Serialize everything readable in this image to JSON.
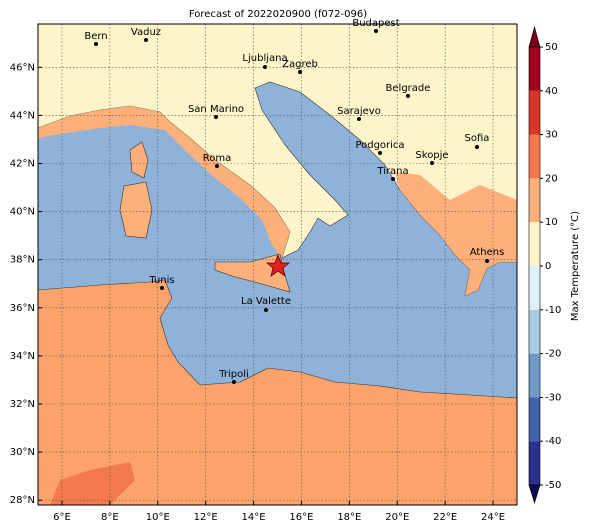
{
  "map": {
    "title": "Forecast of 2022020900 (f072-096)",
    "xlim": [
      5,
      25
    ],
    "ylim": [
      27.8,
      47.8
    ],
    "grid": true,
    "xticks": [
      {
        "value": 6,
        "label": "6°E"
      },
      {
        "value": 8,
        "label": "8°E"
      },
      {
        "value": 10,
        "label": "10°E"
      },
      {
        "value": 12,
        "label": "12°E"
      },
      {
        "value": 14,
        "label": "14°E"
      },
      {
        "value": 16,
        "label": "16°E"
      },
      {
        "value": 18,
        "label": "18°E"
      },
      {
        "value": 20,
        "label": "20°E"
      },
      {
        "value": 22,
        "label": "22°E"
      },
      {
        "value": 24,
        "label": "24°E"
      }
    ],
    "yticks": [
      {
        "value": 28,
        "label": "28°N"
      },
      {
        "value": 30,
        "label": "30°N"
      },
      {
        "value": 32,
        "label": "32°N"
      },
      {
        "value": 34,
        "label": "34°N"
      },
      {
        "value": 36,
        "label": "36°N"
      },
      {
        "value": 38,
        "label": "38°N"
      },
      {
        "value": 40,
        "label": "40°N"
      },
      {
        "value": 42,
        "label": "42°N"
      },
      {
        "value": 44,
        "label": "44°N"
      },
      {
        "value": 46,
        "label": "46°N"
      }
    ],
    "colorbar": {
      "label": "Max Temperature (°C)",
      "lim": [
        -50,
        50
      ],
      "ticks": [
        -50,
        -40,
        -30,
        -20,
        -10,
        0,
        10,
        20,
        30,
        40,
        50
      ],
      "colors": [
        "#2b2f8e",
        "#3f62a8",
        "#6f9bc8",
        "#a8cde4",
        "#dff1f7",
        "#fdf5c9",
        "#fdb07a",
        "#f47a4e",
        "#d9362a",
        "#a3001f"
      ]
    },
    "cities": [
      "Bern",
      "Vaduz",
      "Budapest",
      "Ljubljana",
      "Zagreb",
      "Belgrade",
      "San Marino",
      "Sarajevo",
      "Sofia",
      "Podgorica",
      "Skopje",
      "Roma",
      "Tirana",
      "Athens",
      "Tunis",
      "La Valette",
      "Tripoli"
    ]
  }
}
